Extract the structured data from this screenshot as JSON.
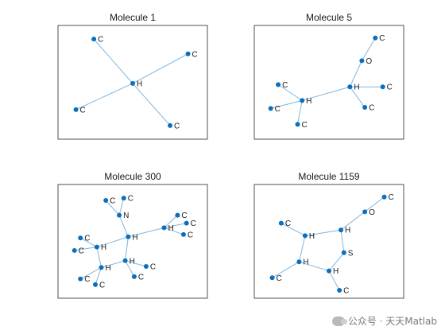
{
  "panels": [
    {
      "title": "Molecule 1",
      "nodes": [
        {
          "label": "H",
          "nx": 0.5,
          "ny": 0.51
        },
        {
          "label": "C",
          "nx": 0.24,
          "ny": 0.12
        },
        {
          "label": "C",
          "nx": 0.87,
          "ny": 0.25
        },
        {
          "label": "C",
          "nx": 0.12,
          "ny": 0.74
        },
        {
          "label": "C",
          "nx": 0.75,
          "ny": 0.88
        }
      ],
      "edges": [
        [
          0,
          1
        ],
        [
          0,
          2
        ],
        [
          0,
          3
        ],
        [
          0,
          4
        ]
      ]
    },
    {
      "title": "Molecule 5",
      "nodes": [
        {
          "label": "C",
          "nx": 0.81,
          "ny": 0.11
        },
        {
          "label": "O",
          "nx": 0.72,
          "ny": 0.31
        },
        {
          "label": "H",
          "nx": 0.64,
          "ny": 0.54
        },
        {
          "label": "C",
          "nx": 0.86,
          "ny": 0.54
        },
        {
          "label": "C",
          "nx": 0.74,
          "ny": 0.72
        },
        {
          "label": "H",
          "nx": 0.32,
          "ny": 0.66
        },
        {
          "label": "C",
          "nx": 0.16,
          "ny": 0.52
        },
        {
          "label": "C",
          "nx": 0.11,
          "ny": 0.73
        },
        {
          "label": "C",
          "nx": 0.29,
          "ny": 0.87
        }
      ],
      "edges": [
        [
          0,
          1
        ],
        [
          1,
          2
        ],
        [
          2,
          3
        ],
        [
          2,
          4
        ],
        [
          2,
          5
        ],
        [
          5,
          6
        ],
        [
          5,
          7
        ],
        [
          5,
          8
        ]
      ]
    },
    {
      "title": "Molecule 300",
      "nodes": [
        {
          "label": "C",
          "nx": 0.32,
          "ny": 0.14
        },
        {
          "label": "C",
          "nx": 0.44,
          "ny": 0.12
        },
        {
          "label": "N",
          "nx": 0.41,
          "ny": 0.27
        },
        {
          "label": "H",
          "nx": 0.47,
          "ny": 0.46
        },
        {
          "label": "H",
          "nx": 0.71,
          "ny": 0.38
        },
        {
          "label": "C",
          "nx": 0.8,
          "ny": 0.27
        },
        {
          "label": "C",
          "nx": 0.86,
          "ny": 0.34
        },
        {
          "label": "C",
          "nx": 0.84,
          "ny": 0.44
        },
        {
          "label": "H",
          "nx": 0.26,
          "ny": 0.55
        },
        {
          "label": "C",
          "nx": 0.15,
          "ny": 0.47
        },
        {
          "label": "C",
          "nx": 0.11,
          "ny": 0.58
        },
        {
          "label": "H",
          "nx": 0.45,
          "ny": 0.67
        },
        {
          "label": "C",
          "nx": 0.59,
          "ny": 0.72
        },
        {
          "label": "C",
          "nx": 0.51,
          "ny": 0.81
        },
        {
          "label": "H",
          "nx": 0.29,
          "ny": 0.73
        },
        {
          "label": "C",
          "nx": 0.15,
          "ny": 0.83
        },
        {
          "label": "C",
          "nx": 0.25,
          "ny": 0.88
        }
      ],
      "edges": [
        [
          0,
          2
        ],
        [
          1,
          2
        ],
        [
          2,
          3
        ],
        [
          3,
          4
        ],
        [
          4,
          5
        ],
        [
          4,
          6
        ],
        [
          4,
          7
        ],
        [
          3,
          8
        ],
        [
          8,
          9
        ],
        [
          8,
          10
        ],
        [
          3,
          11
        ],
        [
          11,
          12
        ],
        [
          11,
          13
        ],
        [
          8,
          14
        ],
        [
          11,
          14
        ],
        [
          14,
          15
        ],
        [
          14,
          16
        ]
      ]
    },
    {
      "title": "Molecule 1159",
      "nodes": [
        {
          "label": "C",
          "nx": 0.87,
          "ny": 0.11
        },
        {
          "label": "O",
          "nx": 0.74,
          "ny": 0.24
        },
        {
          "label": "H",
          "nx": 0.58,
          "ny": 0.4
        },
        {
          "label": "H",
          "nx": 0.34,
          "ny": 0.45
        },
        {
          "label": "C",
          "nx": 0.18,
          "ny": 0.34
        },
        {
          "label": "S",
          "nx": 0.6,
          "ny": 0.6
        },
        {
          "label": "H",
          "nx": 0.3,
          "ny": 0.68
        },
        {
          "label": "C",
          "nx": 0.12,
          "ny": 0.82
        },
        {
          "label": "H",
          "nx": 0.5,
          "ny": 0.76
        },
        {
          "label": "C",
          "nx": 0.57,
          "ny": 0.93
        }
      ],
      "edges": [
        [
          0,
          1
        ],
        [
          1,
          2
        ],
        [
          2,
          3
        ],
        [
          3,
          4
        ],
        [
          2,
          5
        ],
        [
          3,
          6
        ],
        [
          6,
          7
        ],
        [
          6,
          8
        ],
        [
          5,
          8
        ],
        [
          8,
          9
        ]
      ]
    }
  ],
  "watermark": {
    "text": "公众号 · 天天Matlab",
    "icon": "wechat-icon"
  }
}
